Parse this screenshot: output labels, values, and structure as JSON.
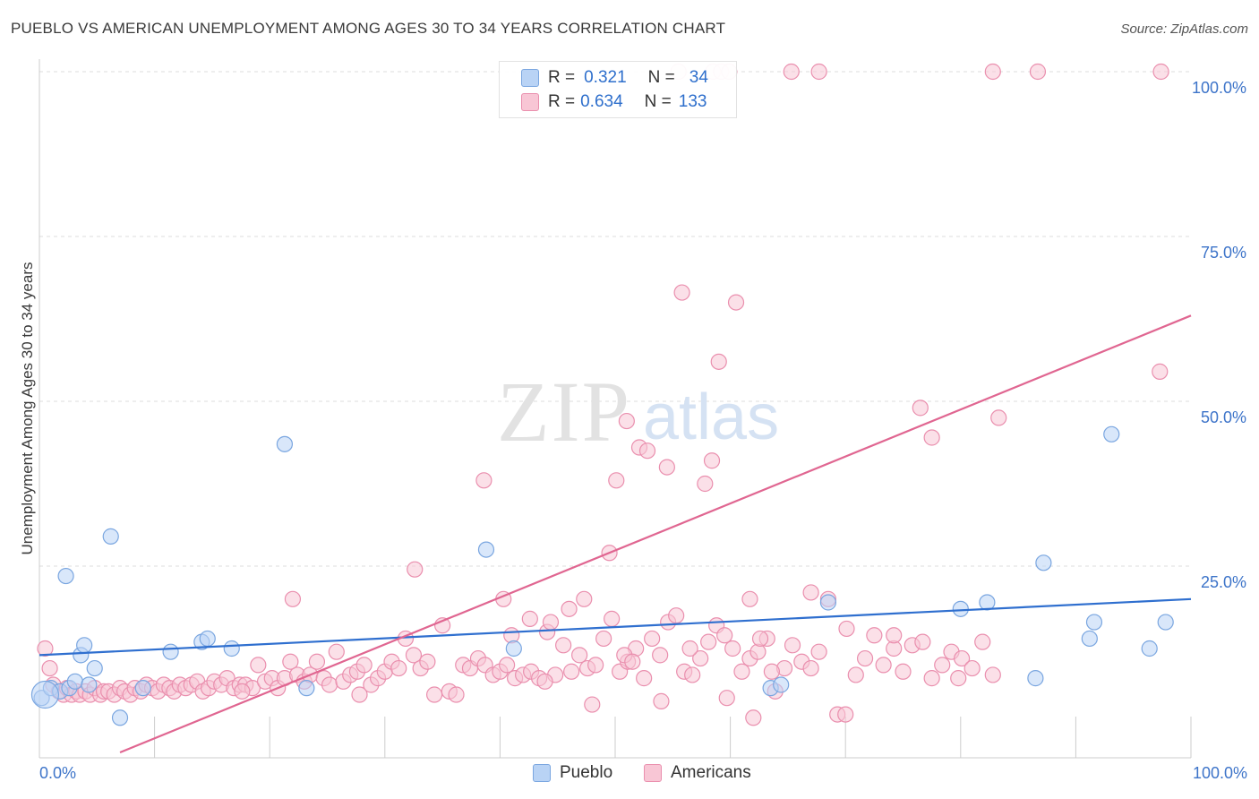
{
  "header": {
    "title": "PUEBLO VS AMERICAN UNEMPLOYMENT AMONG AGES 30 TO 34 YEARS CORRELATION CHART",
    "source": "Source: ZipAtlas.com"
  },
  "legend": {
    "pueblo": {
      "r_label": "R =",
      "r_value": "0.321",
      "n_label": "N =",
      "n_value": "34"
    },
    "americans": {
      "r_label": "R =",
      "r_value": "0.634",
      "n_label": "N =",
      "n_value": "133"
    }
  },
  "bottom_legend": {
    "pueblo": "Pueblo",
    "americans": "Americans"
  },
  "watermark": {
    "zip": "ZIP",
    "atlas": "atlas"
  },
  "colors": {
    "pueblo_fill": "#b9d3f5",
    "pueblo_stroke": "#7aa6e0",
    "pueblo_line": "#2f6fcf",
    "americans_fill": "#f8c6d5",
    "americans_stroke": "#ea8fae",
    "americans_line": "#e06691",
    "axis_label": "#3d74c9",
    "grid": "#dddddd"
  },
  "chart_data": {
    "type": "scatter",
    "title": "PUEBLO VS AMERICAN UNEMPLOYMENT AMONG AGES 30 TO 34 YEARS CORRELATION CHART",
    "xlabel": "",
    "ylabel": "Unemployment Among Ages 30 to 34 years",
    "xlim": [
      0,
      100
    ],
    "ylim": [
      0,
      100
    ],
    "x_tick_labels": [
      "0.0%",
      "100.0%"
    ],
    "y_tick_labels": [
      "100.0%",
      "75.0%",
      "50.0%",
      "25.0%"
    ],
    "y_ticks": [
      100,
      75,
      50,
      25
    ],
    "grid": true,
    "legend_position": "top-center",
    "series": [
      {
        "name": "Pueblo",
        "r": 0.321,
        "n": 34,
        "trend": {
          "x": [
            0,
            100
          ],
          "y": [
            11.5,
            20.0
          ]
        },
        "points": [
          [
            0.2,
            5.0
          ],
          [
            1.0,
            6.5
          ],
          [
            1.8,
            6.0
          ],
          [
            2.3,
            23.5
          ],
          [
            2.6,
            6.5
          ],
          [
            3.1,
            7.5
          ],
          [
            3.6,
            11.5
          ],
          [
            3.9,
            13.0
          ],
          [
            4.3,
            7.0
          ],
          [
            4.8,
            9.5
          ],
          [
            6.2,
            29.5
          ],
          [
            7.0,
            2.0
          ],
          [
            9.0,
            6.5
          ],
          [
            11.4,
            12.0
          ],
          [
            14.1,
            13.5
          ],
          [
            14.6,
            14.0
          ],
          [
            16.7,
            12.5
          ],
          [
            21.3,
            43.5
          ],
          [
            23.2,
            6.5
          ],
          [
            38.8,
            27.5
          ],
          [
            41.2,
            12.5
          ],
          [
            63.5,
            6.5
          ],
          [
            64.4,
            7.0
          ],
          [
            68.5,
            19.5
          ],
          [
            80.0,
            18.5
          ],
          [
            82.3,
            19.5
          ],
          [
            86.5,
            8.0
          ],
          [
            87.2,
            25.5
          ],
          [
            91.2,
            14.0
          ],
          [
            91.6,
            16.5
          ],
          [
            93.1,
            45.0
          ],
          [
            96.4,
            12.5
          ],
          [
            97.8,
            16.5
          ],
          [
            0.5,
            5.5
          ]
        ]
      },
      {
        "name": "Americans",
        "r": 0.634,
        "n": 133,
        "trend": {
          "x": [
            7.0,
            100.0
          ],
          "y": [
            0.0,
            63.0
          ]
        },
        "points": [
          [
            0.5,
            12.5
          ],
          [
            0.9,
            9.5
          ],
          [
            1.2,
            7.0
          ],
          [
            1.7,
            6.0
          ],
          [
            2.1,
            5.5
          ],
          [
            2.4,
            6.5
          ],
          [
            2.8,
            5.5
          ],
          [
            3.2,
            6.0
          ],
          [
            3.5,
            5.5
          ],
          [
            4.0,
            6.0
          ],
          [
            4.4,
            5.5
          ],
          [
            4.8,
            6.5
          ],
          [
            5.3,
            5.5
          ],
          [
            5.6,
            6.0
          ],
          [
            6.0,
            6.0
          ],
          [
            6.5,
            5.5
          ],
          [
            7.0,
            6.5
          ],
          [
            7.4,
            6.0
          ],
          [
            7.9,
            5.5
          ],
          [
            8.3,
            6.5
          ],
          [
            8.8,
            6.0
          ],
          [
            9.3,
            7.0
          ],
          [
            9.8,
            6.5
          ],
          [
            10.3,
            6.0
          ],
          [
            10.8,
            7.0
          ],
          [
            11.3,
            6.5
          ],
          [
            11.7,
            6.0
          ],
          [
            12.2,
            7.0
          ],
          [
            12.7,
            6.5
          ],
          [
            13.2,
            7.0
          ],
          [
            13.7,
            7.5
          ],
          [
            14.2,
            6.0
          ],
          [
            14.7,
            6.5
          ],
          [
            15.2,
            7.5
          ],
          [
            15.8,
            7.0
          ],
          [
            16.3,
            8.0
          ],
          [
            16.9,
            6.5
          ],
          [
            17.4,
            7.0
          ],
          [
            17.9,
            7.0
          ],
          [
            18.5,
            6.5
          ],
          [
            19.0,
            10.0
          ],
          [
            19.6,
            7.5
          ],
          [
            20.2,
            8.0
          ],
          [
            20.7,
            6.5
          ],
          [
            21.3,
            8.0
          ],
          [
            21.8,
            10.5
          ],
          [
            22.4,
            8.5
          ],
          [
            23.0,
            7.5
          ],
          [
            23.5,
            8.5
          ],
          [
            24.1,
            10.5
          ],
          [
            24.7,
            8.0
          ],
          [
            25.2,
            7.0
          ],
          [
            25.8,
            12.0
          ],
          [
            26.4,
            7.5
          ],
          [
            27.0,
            8.5
          ],
          [
            27.6,
            9.0
          ],
          [
            28.2,
            10.0
          ],
          [
            28.8,
            7.0
          ],
          [
            29.4,
            8.0
          ],
          [
            30.0,
            9.0
          ],
          [
            30.6,
            10.5
          ],
          [
            31.2,
            9.5
          ],
          [
            31.8,
            14.0
          ],
          [
            32.5,
            11.5
          ],
          [
            33.1,
            9.5
          ],
          [
            33.7,
            10.5
          ],
          [
            34.3,
            5.5
          ],
          [
            35.0,
            16.0
          ],
          [
            35.6,
            6.0
          ],
          [
            36.2,
            5.5
          ],
          [
            36.8,
            10.0
          ],
          [
            37.4,
            9.5
          ],
          [
            38.1,
            11.0
          ],
          [
            38.7,
            10.0
          ],
          [
            39.4,
            8.5
          ],
          [
            40.0,
            9.0
          ],
          [
            40.6,
            10.0
          ],
          [
            41.3,
            8.0
          ],
          [
            42.0,
            8.5
          ],
          [
            42.7,
            9.0
          ],
          [
            43.4,
            8.0
          ],
          [
            44.1,
            15.0
          ],
          [
            44.8,
            8.5
          ],
          [
            45.5,
            13.0
          ],
          [
            46.2,
            9.0
          ],
          [
            46.9,
            11.5
          ],
          [
            47.6,
            9.5
          ],
          [
            48.3,
            10.0
          ],
          [
            49.0,
            14.0
          ],
          [
            49.7,
            17.0
          ],
          [
            50.4,
            9.0
          ],
          [
            51.1,
            10.5
          ],
          [
            51.8,
            12.5
          ],
          [
            52.5,
            8.0
          ],
          [
            53.2,
            14.0
          ],
          [
            53.9,
            11.5
          ],
          [
            54.6,
            16.5
          ],
          [
            55.3,
            17.5
          ],
          [
            56.0,
            9.0
          ],
          [
            56.7,
            8.5
          ],
          [
            57.4,
            11.0
          ],
          [
            58.1,
            13.5
          ],
          [
            58.8,
            16.0
          ],
          [
            59.5,
            14.5
          ],
          [
            60.2,
            12.5
          ],
          [
            61.0,
            9.0
          ],
          [
            61.7,
            11.0
          ],
          [
            62.4,
            12.0
          ],
          [
            63.2,
            14.0
          ],
          [
            63.9,
            6.0
          ],
          [
            64.7,
            9.5
          ],
          [
            65.4,
            13.0
          ],
          [
            66.2,
            10.5
          ],
          [
            67.0,
            9.5
          ],
          [
            67.7,
            12.0
          ],
          [
            68.5,
            20.0
          ],
          [
            69.3,
            2.5
          ],
          [
            70.1,
            15.5
          ],
          [
            70.9,
            8.5
          ],
          [
            71.7,
            11.0
          ],
          [
            72.5,
            14.5
          ],
          [
            73.3,
            10.0
          ],
          [
            74.2,
            12.5
          ],
          [
            75.0,
            9.0
          ],
          [
            75.8,
            13.0
          ],
          [
            76.7,
            13.5
          ],
          [
            77.5,
            8.0
          ],
          [
            78.4,
            10.0
          ],
          [
            79.2,
            12.0
          ],
          [
            80.1,
            11.0
          ],
          [
            81.0,
            9.5
          ],
          [
            81.9,
            13.5
          ],
          [
            82.8,
            8.5
          ]
        ]
      }
    ],
    "extra_americans_points": [
      [
        17.6,
        6.0
      ],
      [
        22.0,
        20.0
      ],
      [
        27.8,
        5.5
      ],
      [
        32.6,
        24.5
      ],
      [
        38.6,
        38.0
      ],
      [
        40.3,
        20.0
      ],
      [
        41.0,
        14.5
      ],
      [
        42.6,
        17.0
      ],
      [
        43.9,
        7.5
      ],
      [
        44.4,
        16.5
      ],
      [
        46.0,
        18.5
      ],
      [
        47.3,
        20.0
      ],
      [
        48.0,
        4.0
      ],
      [
        49.5,
        27.0
      ],
      [
        50.1,
        38.0
      ],
      [
        50.8,
        11.5
      ],
      [
        51.0,
        47.0
      ],
      [
        51.5,
        10.5
      ],
      [
        52.1,
        43.0
      ],
      [
        52.8,
        42.5
      ],
      [
        54.0,
        4.5
      ],
      [
        54.5,
        40.0
      ],
      [
        55.8,
        66.5
      ],
      [
        56.5,
        12.5
      ],
      [
        57.8,
        37.5
      ],
      [
        59.0,
        56.0
      ],
      [
        58.4,
        41.0
      ],
      [
        59.7,
        5.0
      ],
      [
        60.5,
        65.0
      ],
      [
        61.7,
        20.0
      ],
      [
        62.0,
        2.0
      ],
      [
        62.6,
        14.0
      ],
      [
        63.6,
        9.0
      ],
      [
        67.0,
        21.0
      ],
      [
        70.0,
        2.5
      ],
      [
        74.2,
        14.5
      ],
      [
        76.5,
        49.0
      ],
      [
        77.5,
        44.5
      ],
      [
        79.8,
        8.0
      ],
      [
        83.3,
        47.5
      ],
      [
        97.3,
        54.5
      ]
    ],
    "top_row_americans_points": [
      [
        55.5,
        100.0
      ],
      [
        58.5,
        100.0
      ],
      [
        59.2,
        100.0
      ],
      [
        59.9,
        100.0
      ],
      [
        65.3,
        100.0
      ],
      [
        67.7,
        100.0
      ],
      [
        82.8,
        100.0
      ],
      [
        86.7,
        100.0
      ],
      [
        97.4,
        100.0
      ]
    ]
  }
}
